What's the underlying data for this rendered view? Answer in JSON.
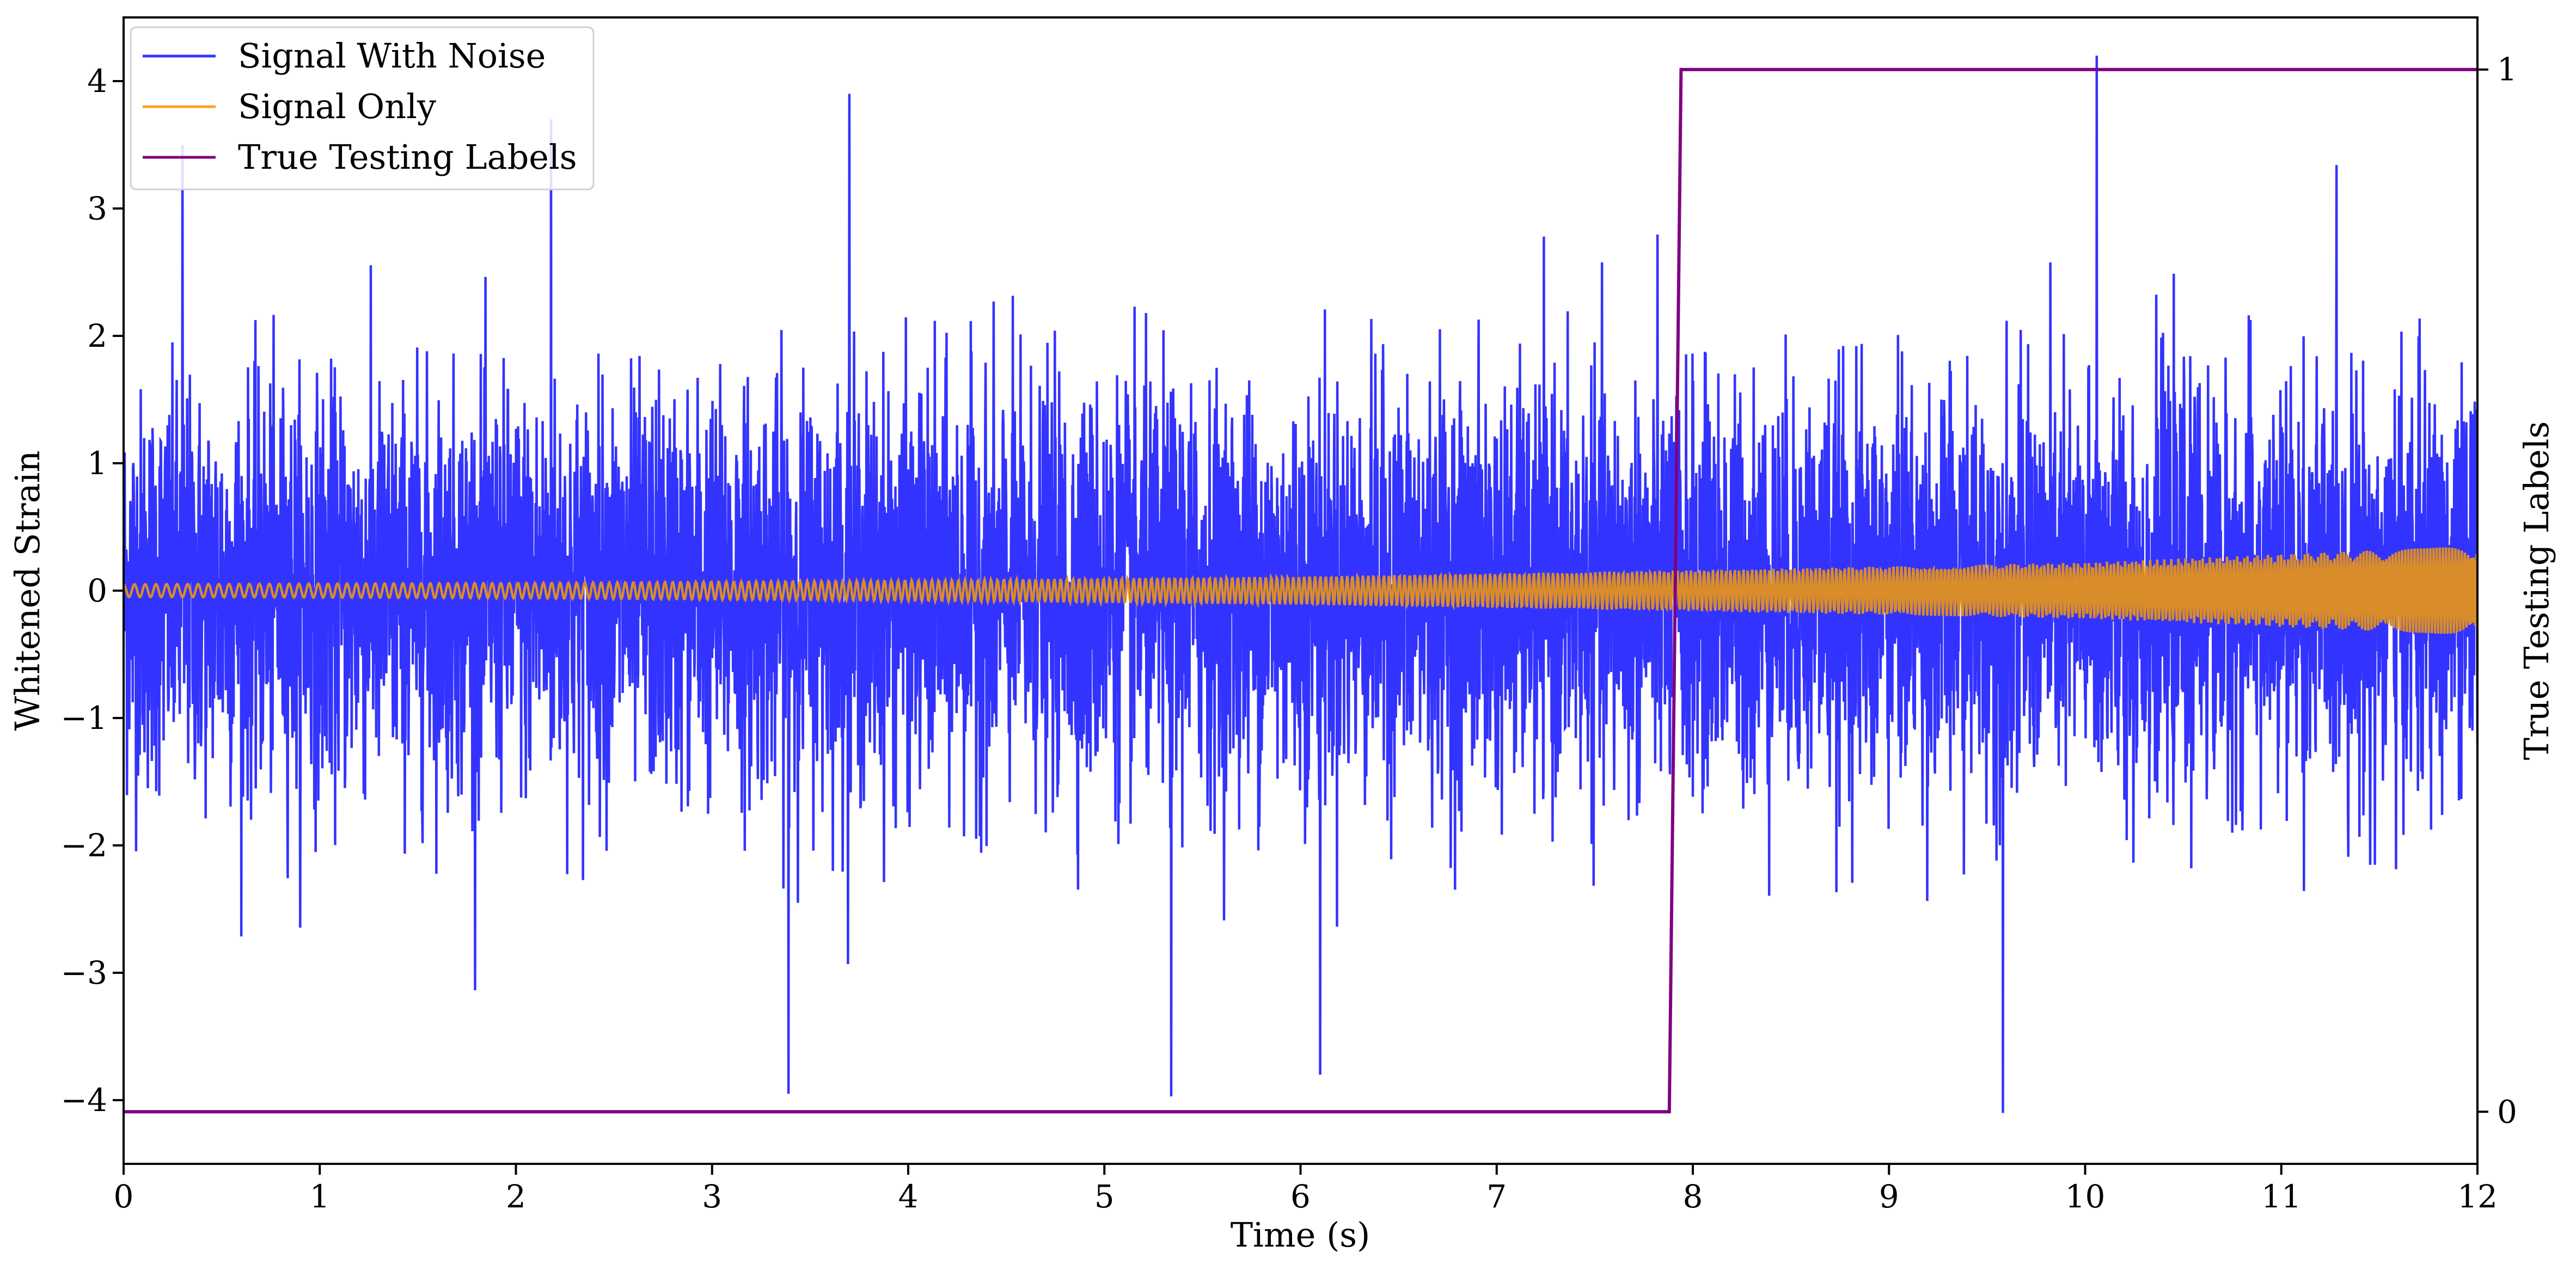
{
  "chart_data": {
    "type": "line",
    "title": "",
    "xlabel": "Time (s)",
    "ylabel": "Whitened Strain",
    "y2label": "True Testing Labels",
    "xlim": [
      0,
      12
    ],
    "ylim": [
      -4.5,
      4.5
    ],
    "y2lim": [
      -0.05,
      1.05
    ],
    "x_ticks": [
      0,
      1,
      2,
      3,
      4,
      5,
      6,
      7,
      8,
      9,
      10,
      11,
      12
    ],
    "y_ticks": [
      4,
      3,
      2,
      1,
      0,
      -1,
      -2,
      -3,
      -4
    ],
    "y_tick_labels": [
      "4",
      "3",
      "2",
      "1",
      "0",
      "−1",
      "−2",
      "−3",
      "−4"
    ],
    "y2_ticks": [
      1,
      0
    ],
    "grid": false,
    "legend_position": "upper-left",
    "series": [
      {
        "name": "Signal With Noise",
        "color": "#3333ff",
        "axis": "left",
        "description_values": {
          "x_start": 0,
          "x_end": 12,
          "noise_std": 1.0,
          "notable_peaks": [
            {
              "x": 0.3,
              "y": 3.5
            },
            {
              "x": 2.18,
              "y": 3.7
            },
            {
              "x": 3.7,
              "y": 3.9
            },
            {
              "x": 10.06,
              "y": 4.2
            },
            {
              "x": 3.39,
              "y": -3.95
            },
            {
              "x": 5.34,
              "y": -3.97
            },
            {
              "x": 9.58,
              "y": -4.1
            },
            {
              "x": 6.1,
              "y": -3.8
            }
          ]
        }
      },
      {
        "name": "Signal Only",
        "color": "#f5a623",
        "axis": "left",
        "description_values": {
          "x_start": 0,
          "x_end": 12,
          "amplitude_start": 0.05,
          "amplitude_end": 0.35,
          "envelope": [
            [
              0,
              0.05
            ],
            [
              2,
              0.06
            ],
            [
              4,
              0.08
            ],
            [
              6,
              0.11
            ],
            [
              8,
              0.16
            ],
            [
              10,
              0.22
            ],
            [
              12,
              0.35
            ]
          ]
        }
      },
      {
        "name": "True Testing Labels",
        "color": "#800080",
        "axis": "right",
        "x": [
          0,
          7.88,
          7.94,
          12
        ],
        "values": [
          0,
          0,
          1,
          1
        ]
      }
    ]
  }
}
